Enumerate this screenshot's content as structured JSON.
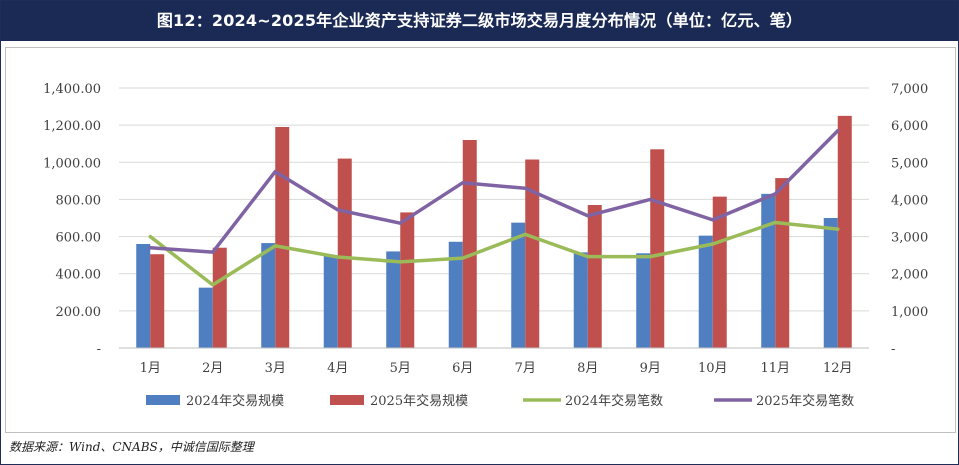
{
  "title": "图12：2024~2025年企业资产支持证券二级市场交易月度分布情况（单位：亿元、笔）",
  "source": "数据来源：Wind、CNABS，中诚信国际整理",
  "colors": {
    "bar2024": "#4f7fc0",
    "bar2025": "#c0504d",
    "line2024": "#9bbb59",
    "line2025": "#7f63a2",
    "axis_text": "#404040",
    "grid": "#d9d9d9"
  },
  "chart_data": {
    "type": "bar",
    "categories": [
      "1月",
      "2月",
      "3月",
      "4月",
      "5月",
      "6月",
      "7月",
      "8月",
      "9月",
      "10月",
      "11月",
      "12月"
    ],
    "series": [
      {
        "name": "2024年交易规模",
        "kind": "bar",
        "axis": "left",
        "values": [
          560,
          325,
          565,
          500,
          520,
          572,
          675,
          515,
          510,
          605,
          830,
          700
        ]
      },
      {
        "name": "2025年交易规模",
        "kind": "bar",
        "axis": "left",
        "values": [
          505,
          540,
          1190,
          1020,
          730,
          1120,
          1015,
          770,
          1070,
          815,
          915,
          1250
        ]
      },
      {
        "name": "2024年交易笔数",
        "kind": "line",
        "axis": "right",
        "values": [
          3000,
          1700,
          2750,
          2450,
          2320,
          2420,
          3060,
          2460,
          2460,
          2800,
          3380,
          3200
        ]
      },
      {
        "name": "2025年交易笔数",
        "kind": "line",
        "axis": "right",
        "values": [
          2700,
          2580,
          4750,
          3720,
          3360,
          4450,
          4300,
          3560,
          4000,
          3450,
          4150,
          5850
        ]
      }
    ],
    "ylim_left": [
      0,
      1400
    ],
    "ylim_right": [
      0,
      7000
    ],
    "yticks_left": [
      "-",
      "200.00",
      "400.00",
      "600.00",
      "800.00",
      "1,000.00",
      "1,200.00",
      "1,400.00"
    ],
    "yticks_right": [
      "-",
      "1,000",
      "2,000",
      "3,000",
      "4,000",
      "5,000",
      "6,000",
      "7,000"
    ],
    "legend_position": "bottom"
  }
}
